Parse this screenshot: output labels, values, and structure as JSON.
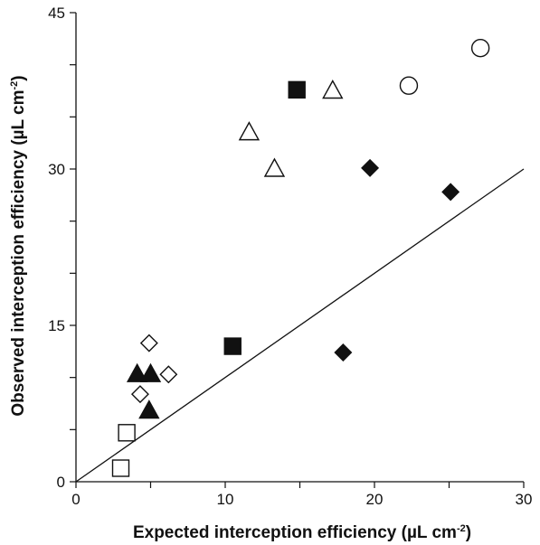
{
  "chart_data": {
    "type": "scatter",
    "title": "",
    "xlabel_main": "Expected interception efficiency (",
    "xlabel_unit": "µL cm",
    "xlabel_sup": "-2",
    "xlabel_end": ")",
    "ylabel_main": "Observed interception efficiency (",
    "ylabel_unit": "µL cm",
    "ylabel_sup": "-2",
    "ylabel_end": ")",
    "xlim": [
      0,
      30
    ],
    "ylim": [
      0,
      45
    ],
    "x_ticks": [
      0,
      10,
      20,
      30
    ],
    "x_minor_ticks": [
      5,
      15,
      25
    ],
    "y_ticks": [
      0,
      15,
      30,
      45
    ],
    "y_minor_ticks": [
      5,
      10,
      20,
      25,
      35,
      40
    ],
    "grid": false,
    "reference_line": {
      "x": [
        0,
        30
      ],
      "y": [
        0,
        30
      ]
    },
    "series": [
      {
        "marker": "open-circle",
        "points": [
          [
            22.3,
            38.0
          ],
          [
            27.1,
            41.6
          ]
        ]
      },
      {
        "marker": "open-triangle",
        "points": [
          [
            11.6,
            33.5
          ],
          [
            17.2,
            37.5
          ],
          [
            13.3,
            30.0
          ]
        ]
      },
      {
        "marker": "filled-square",
        "points": [
          [
            14.8,
            37.6
          ],
          [
            10.5,
            13.0
          ]
        ]
      },
      {
        "marker": "filled-diamond",
        "points": [
          [
            19.7,
            30.1
          ],
          [
            25.1,
            27.8
          ],
          [
            17.9,
            12.4
          ]
        ]
      },
      {
        "marker": "open-diamond",
        "points": [
          [
            4.9,
            13.3
          ],
          [
            6.2,
            10.3
          ],
          [
            4.3,
            8.4
          ]
        ]
      },
      {
        "marker": "filled-triangle",
        "points": [
          [
            4.1,
            10.3
          ],
          [
            5.0,
            10.3
          ],
          [
            4.9,
            6.8
          ]
        ]
      },
      {
        "marker": "open-square",
        "points": [
          [
            3.4,
            4.7
          ],
          [
            3.0,
            1.3
          ]
        ]
      }
    ]
  }
}
